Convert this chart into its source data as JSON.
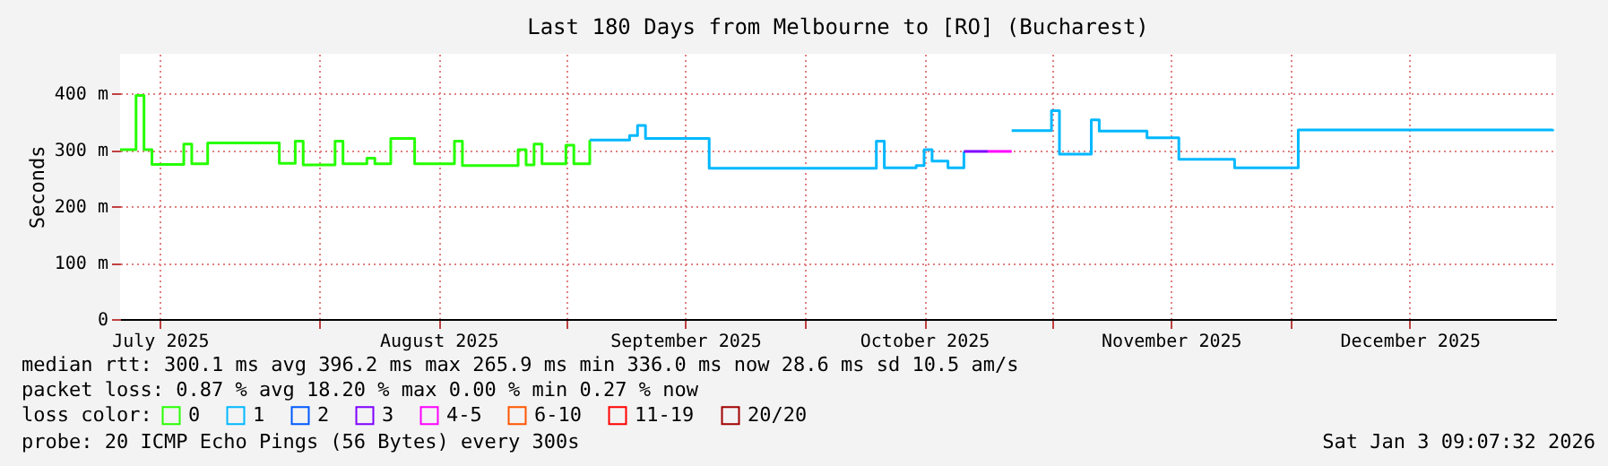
{
  "chart_data": {
    "type": "step",
    "title": "Last 180 Days from Melbourne to [RO] (Bucharest)",
    "ylabel": "Seconds",
    "legend_title": "loss color:",
    "xlim": [
      "2025-07-07T00:00",
      "2026-01-03T09:07"
    ],
    "xticks": [
      {
        "value": "2025-07-12",
        "label": "July 2025"
      },
      {
        "value": "2025-08-01",
        "label": null
      },
      {
        "value": "2025-08-16",
        "label": "August 2025"
      },
      {
        "value": "2025-09-01",
        "label": null
      },
      {
        "value": "2025-09-16",
        "label": "September 2025"
      },
      {
        "value": "2025-10-01",
        "label": null
      },
      {
        "value": "2025-10-16",
        "label": "October 2025"
      },
      {
        "value": "2025-11-01",
        "label": null
      },
      {
        "value": "2025-11-16",
        "label": "November 2025"
      },
      {
        "value": "2025-12-01",
        "label": null
      },
      {
        "value": "2025-12-16",
        "label": "December 2025"
      }
    ],
    "ylim": [
      0,
      470
    ],
    "yticks": [
      0,
      {
        "value": 100,
        "label": "100 m"
      },
      {
        "value": 200,
        "label": "200 m"
      },
      {
        "value": 300,
        "label": "300 m"
      },
      {
        "value": 400,
        "label": "400 m"
      }
    ],
    "grid": true,
    "legend": "bottom",
    "series": [
      {
        "name": "0",
        "color": "#26ff00",
        "x": [
          "2025-07-07",
          "2025-07-09",
          "2025-07-10",
          "2025-07-11",
          "2025-07-15",
          "2025-07-16",
          "2025-07-18",
          "2025-07-27",
          "2025-07-29",
          "2025-07-30",
          "2025-08-03",
          "2025-08-04",
          "2025-08-07",
          "2025-08-08",
          "2025-08-10",
          "2025-08-13",
          "2025-08-18",
          "2025-08-19",
          "2025-08-26",
          "2025-08-27",
          "2025-08-28",
          "2025-08-29",
          "2025-09-01",
          "2025-09-02",
          "2025-09-04"
        ],
        "values": [
          300,
          396,
          300,
          274,
          310,
          275,
          312,
          276,
          315,
          273,
          315,
          275,
          285,
          275,
          320,
          275,
          315,
          272,
          300,
          273,
          310,
          275,
          308,
          275,
          317
        ]
      },
      {
        "name": "1",
        "color": "#00b8ff",
        "x": [
          "2025-09-04",
          "2025-09-09",
          "2025-09-10",
          "2025-09-11",
          "2025-09-19",
          "2025-10-10",
          "2025-10-11",
          "2025-10-15",
          "2025-10-16",
          "2025-10-17",
          "2025-10-19",
          "2025-10-21",
          "2025-10-22",
          "2025-10-27",
          "2025-11-01",
          "2025-11-02",
          "2025-11-06",
          "2025-11-07",
          "2025-11-13",
          "2025-11-17",
          "2025-11-24",
          "2025-12-02",
          "2026-01-03"
        ],
        "values": [
          317,
          325,
          343,
          320,
          267,
          315,
          268,
          272,
          300,
          280,
          268,
          297,
          null,
          334,
          369,
          292,
          353,
          333,
          321,
          283,
          268,
          335,
          336
        ]
      },
      {
        "name": "2",
        "color": "#0059ff"
      },
      {
        "name": "3",
        "color": "#7e00ff",
        "x": [
          "2025-10-21",
          "2025-10-24"
        ],
        "values": [
          297,
          297
        ]
      },
      {
        "name": "4-5",
        "color": "#ff00ff",
        "x": [
          "2025-10-24",
          "2025-10-27"
        ],
        "values": [
          297,
          297
        ]
      },
      {
        "name": "6-10",
        "color": "#ff5500"
      },
      {
        "name": "11-19",
        "color": "#ff0000"
      },
      {
        "name": "20/20",
        "color": "#a10000"
      }
    ],
    "annotations": [
      "median rtt:  300.1 ms avg  396.2 ms max  265.9 ms min  336.0 ms now  28.6 ms sd  10.5   am/s",
      "packet loss: 0.87 % avg  18.20 % max  0.00 % min  0.27 % now",
      "probe:       20 ICMP Echo Pings (56 Bytes) every 300s",
      "Sat Jan  3 09:07:32 2026"
    ]
  }
}
